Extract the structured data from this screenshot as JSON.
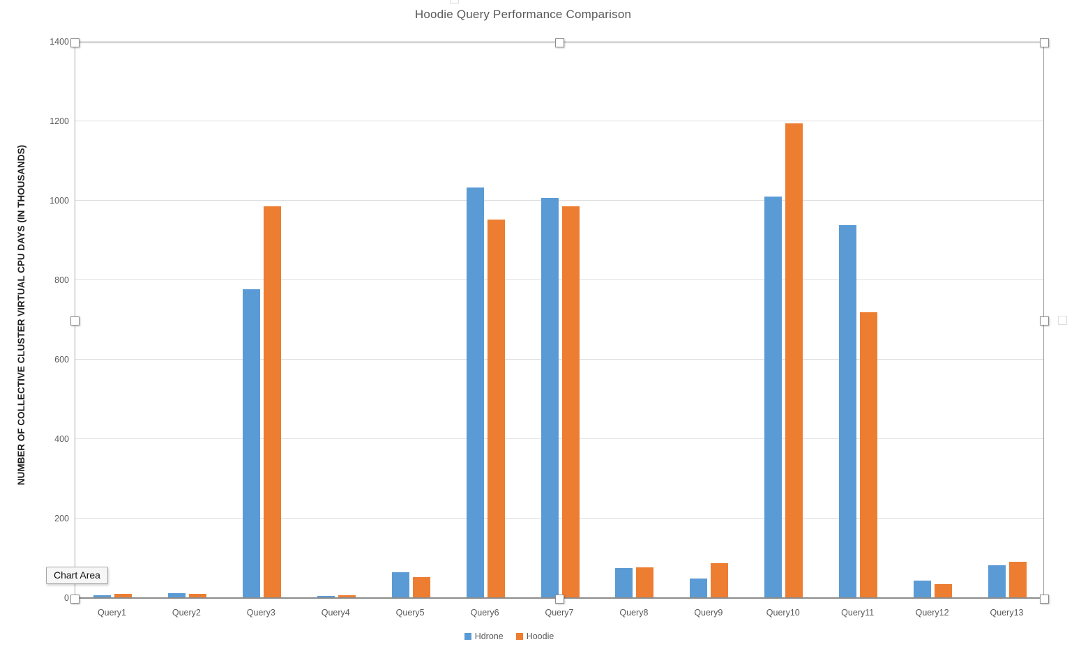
{
  "title": "Hoodie Query Performance Comparison",
  "tooltip_label": "Chart Area",
  "colors": {
    "hdrone": "#5B9BD5",
    "hoodie": "#ED7D31",
    "gridline": "#DEDEDE",
    "axis_text": "#595959",
    "title_text": "#595959"
  },
  "chart_data": {
    "type": "bar",
    "title": "Hoodie Query Performance Comparison",
    "xlabel": "",
    "ylabel": "NUMBER OF COLLECTIVE CLUSTER VIRTUAL CPU DAYS (IN THOUSANDS)",
    "ylim": [
      0,
      1400
    ],
    "yticks": [
      0,
      200,
      400,
      600,
      800,
      1000,
      1200,
      1400
    ],
    "grid": "horizontal",
    "legend_position": "bottom",
    "categories": [
      "Query1",
      "Query2",
      "Query3",
      "Query4",
      "Query5",
      "Query6",
      "Query7",
      "Query8",
      "Query9",
      "Query10",
      "Query11",
      "Query12",
      "Query13"
    ],
    "series": [
      {
        "name": "Hdrone",
        "color": "#5B9BD5",
        "values": [
          5,
          10,
          776,
          4,
          63,
          1031,
          1005,
          74,
          47,
          1008,
          936,
          42,
          81
        ]
      },
      {
        "name": "Hoodie",
        "color": "#ED7D31",
        "values": [
          8,
          9,
          985,
          5,
          51,
          951,
          985,
          76,
          86,
          1193,
          718,
          33,
          90
        ]
      }
    ]
  }
}
